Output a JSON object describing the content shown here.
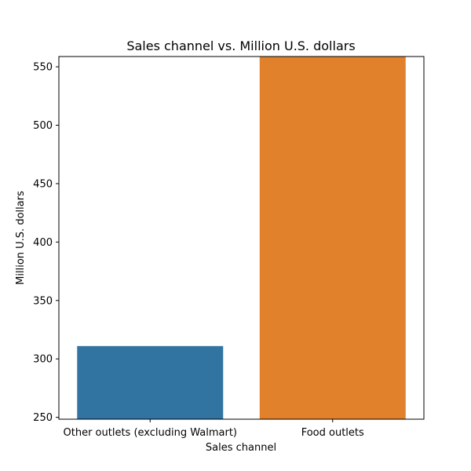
{
  "chart_data": {
    "type": "bar",
    "title": "Sales channel vs. Million U.S. dollars",
    "xlabel": "Sales channel",
    "ylabel": "Million U.S. dollars",
    "categories": [
      "Other outlets (excluding Walmart)",
      "Food outlets"
    ],
    "values": [
      311,
      558.8
    ],
    "ylim": [
      248.4,
      558.8
    ],
    "yticks": [
      250,
      300,
      350,
      400,
      450,
      500,
      550
    ],
    "colors": [
      "#3274a1",
      "#e1812c"
    ],
    "grid": false,
    "legend": false
  }
}
